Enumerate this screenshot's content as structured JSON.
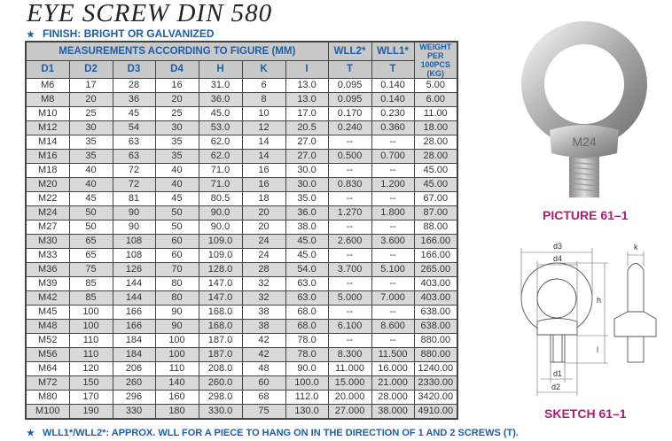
{
  "title": "EYE SCREW DIN 580",
  "finish": "FINISH: BRIGHT OR GALVANIZED",
  "table": {
    "group_header": "MEASUREMENTS ACCORDING TO FIGURE (MM)",
    "wll2_header": "WLL2*",
    "wll1_header": "WLL1*",
    "weight_header": "WEIGHT PER 100PCS (KG)",
    "columns": [
      "D1",
      "D2",
      "D3",
      "D4",
      "H",
      "K",
      "I",
      "T",
      "T"
    ],
    "rows": [
      [
        "M6",
        "17",
        "28",
        "16",
        "31.0",
        "6",
        "13.0",
        "0.095",
        "0.140",
        "5.00"
      ],
      [
        "M8",
        "20",
        "36",
        "20",
        "36.0",
        "8",
        "13.0",
        "0.095",
        "0.140",
        "6.00"
      ],
      [
        "M10",
        "25",
        "45",
        "25",
        "45.0",
        "10",
        "17.0",
        "0.170",
        "0.230",
        "11.00"
      ],
      [
        "M12",
        "30",
        "54",
        "30",
        "53.0",
        "12",
        "20.5",
        "0.240",
        "0.360",
        "18.00"
      ],
      [
        "M14",
        "35",
        "63",
        "35",
        "62.0",
        "14",
        "27.0",
        "--",
        "--",
        "28.00"
      ],
      [
        "M16",
        "35",
        "63",
        "35",
        "62.0",
        "14",
        "27.0",
        "0.500",
        "0.700",
        "28.00"
      ],
      [
        "M18",
        "40",
        "72",
        "40",
        "71.0",
        "16",
        "30.0",
        "--",
        "--",
        "45.00"
      ],
      [
        "M20",
        "40",
        "72",
        "40",
        "71.0",
        "16",
        "30.0",
        "0.830",
        "1.200",
        "45.00"
      ],
      [
        "M22",
        "45",
        "81",
        "45",
        "80.5",
        "18",
        "35.0",
        "--",
        "--",
        "67.00"
      ],
      [
        "M24",
        "50",
        "90",
        "50",
        "90.0",
        "20",
        "36.0",
        "1.270",
        "1.800",
        "87.00"
      ],
      [
        "M27",
        "50",
        "90",
        "50",
        "90.0",
        "20",
        "38.0",
        "--",
        "--",
        "88.00"
      ],
      [
        "M30",
        "65",
        "108",
        "60",
        "109.0",
        "24",
        "45.0",
        "2.600",
        "3.600",
        "166.00"
      ],
      [
        "M33",
        "65",
        "108",
        "60",
        "109.0",
        "24",
        "45.0",
        "--",
        "--",
        "166.00"
      ],
      [
        "M36",
        "75",
        "126",
        "70",
        "128.0",
        "28",
        "54.0",
        "3.700",
        "5.100",
        "265.00"
      ],
      [
        "M39",
        "85",
        "144",
        "80",
        "147.0",
        "32",
        "63.0",
        "--",
        "--",
        "403.00"
      ],
      [
        "M42",
        "85",
        "144",
        "80",
        "147.0",
        "32",
        "63.0",
        "5.000",
        "7.000",
        "403.00"
      ],
      [
        "M45",
        "100",
        "166",
        "90",
        "168.0",
        "38",
        "68.0",
        "--",
        "--",
        "638.00"
      ],
      [
        "M48",
        "100",
        "166",
        "90",
        "168.0",
        "38",
        "68.0",
        "6.100",
        "8.600",
        "638.00"
      ],
      [
        "M52",
        "110",
        "184",
        "100",
        "187.0",
        "42",
        "78.0",
        "--",
        "--",
        "880.00"
      ],
      [
        "M56",
        "110",
        "184",
        "100",
        "187.0",
        "42",
        "78.0",
        "8.300",
        "11.500",
        "880.00"
      ],
      [
        "M64",
        "120",
        "206",
        "110",
        "208.0",
        "48",
        "90.0",
        "11.000",
        "16.000",
        "1240.00"
      ],
      [
        "M72",
        "150",
        "260",
        "140",
        "260.0",
        "60",
        "100.0",
        "15.000",
        "21.000",
        "2330.00"
      ],
      [
        "M80",
        "170",
        "296",
        "160",
        "298.0",
        "68",
        "112.0",
        "20.000",
        "28.000",
        "3420.00"
      ],
      [
        "M100",
        "190",
        "330",
        "180",
        "330.0",
        "75",
        "130.0",
        "27.000",
        "38.000",
        "4910.00"
      ]
    ]
  },
  "footnote": "WLL1*/WLL2*: APPROX. WLL FOR A PIECE TO HANG ON IN THE DIRECTION OF 1 AND 2 SCREWS (T).",
  "picture": {
    "caption": "PICTURE 61–1",
    "markings": [
      "M24"
    ]
  },
  "sketch": {
    "caption": "SKETCH 61–1",
    "labels": {
      "d3": "d3",
      "d4": "d4",
      "h": "h",
      "l": "l",
      "k": "k",
      "d1": "d1",
      "d2": "d2"
    }
  },
  "colors": {
    "blue": "#1d5ea8",
    "magenta": "#b5197a",
    "header_gray": "#c9c9c9",
    "row_alt": "#d9d9d9"
  }
}
